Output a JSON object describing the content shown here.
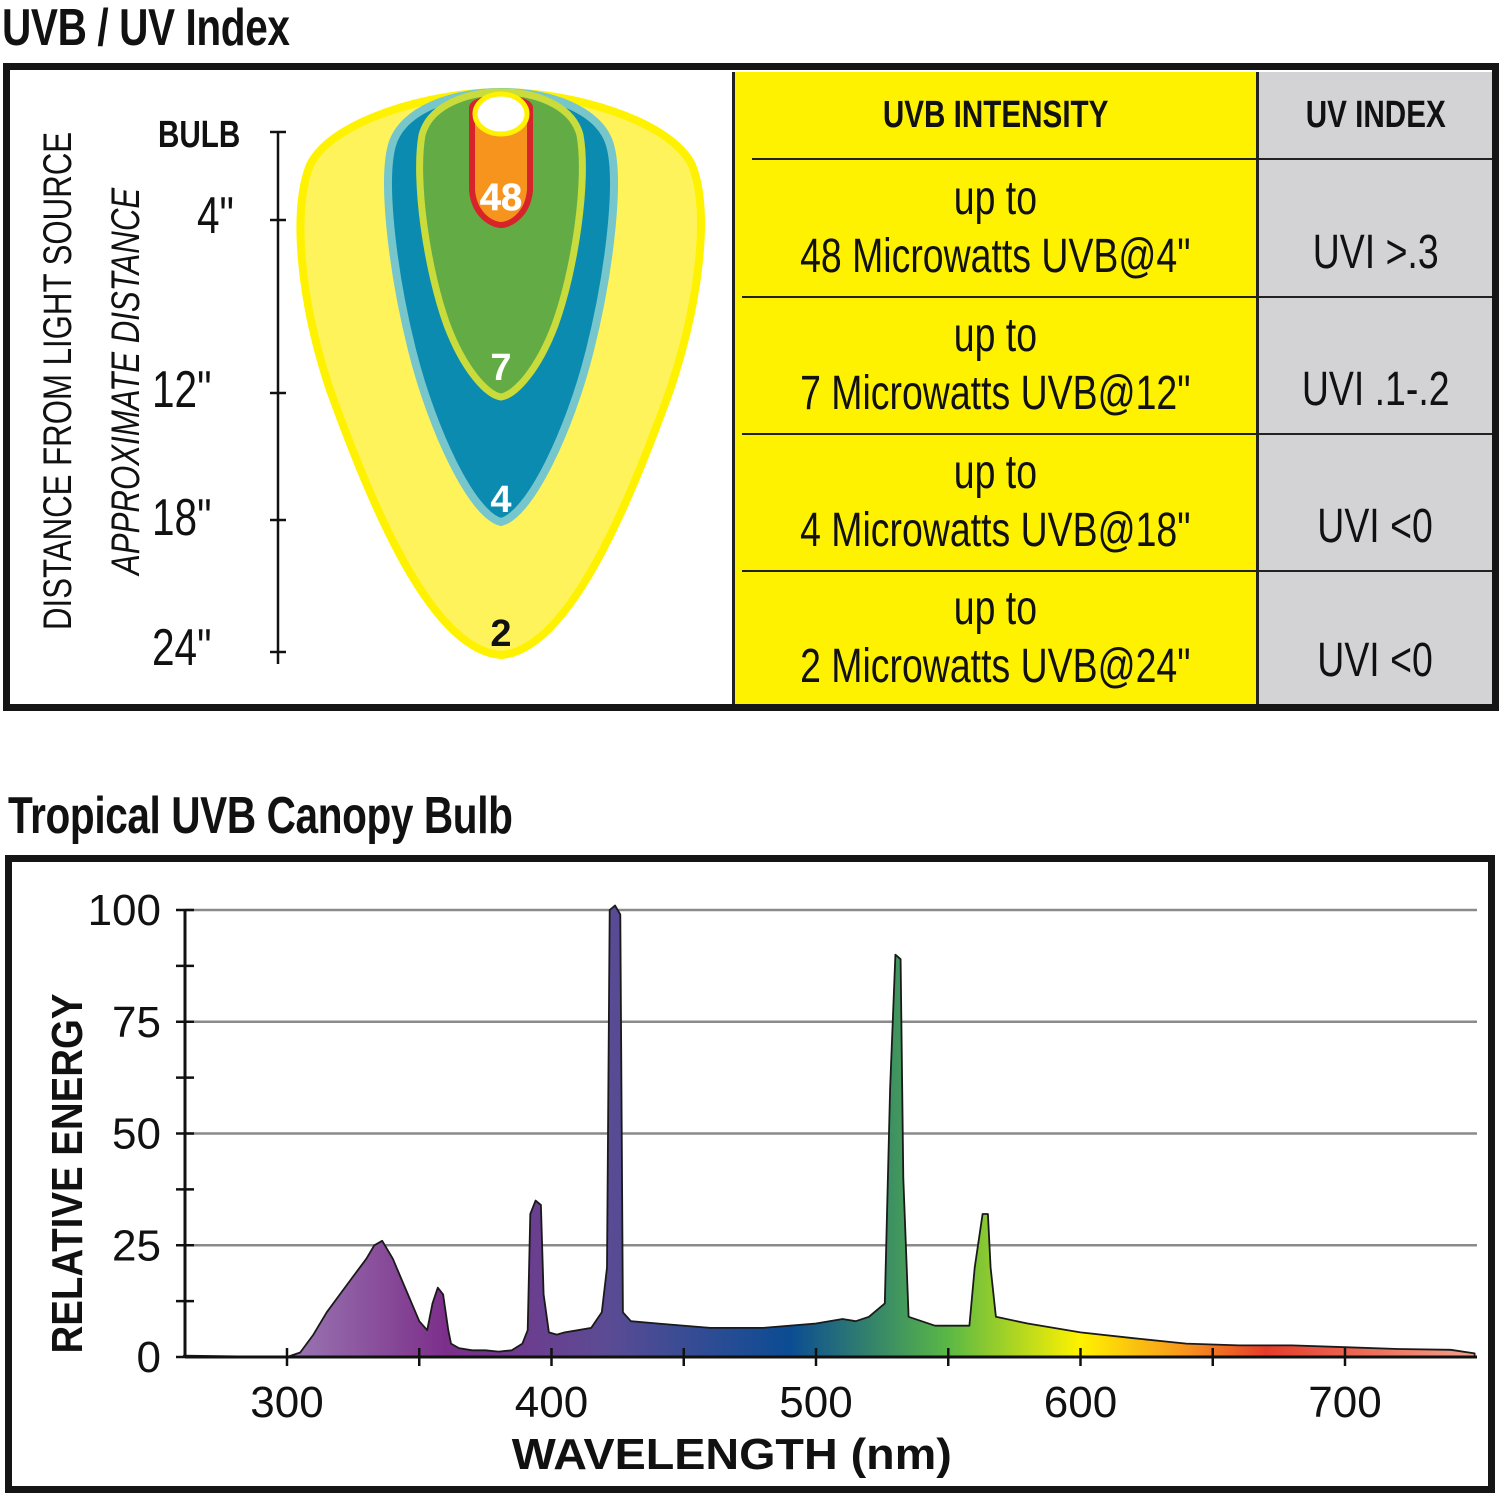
{
  "section1": {
    "title": "UVB / UV Index",
    "diagram": {
      "axis_label_line1": "DISTANCE FROM LIGHT SOURCE",
      "axis_label_line2": "APPROXIMATE DISTANCE",
      "bulb_label": "BULB",
      "distance_labels": [
        "4\"",
        "12\"",
        "18\"",
        "24\""
      ],
      "zone_values": [
        "48",
        "7",
        "4",
        "2"
      ],
      "colors": {
        "outer_zone": "#fff35c",
        "outer_edge": "#fff200",
        "blue_zone": "#0c8bb0",
        "blue_edge": "#76c6cc",
        "green_zone": "#63ab44",
        "green_edge": "#c9dc3c",
        "orange_zone": "#f7941d",
        "red_edge": "#d7232a"
      }
    },
    "table": {
      "header_intensity": "UVB INTENSITY",
      "header_index": "UV INDEX",
      "rows": [
        {
          "line1": "up to",
          "line2": "48 Microwatts UVB@4\"",
          "uvi": "UVI >.3"
        },
        {
          "line1": "up to",
          "line2": "7 Microwatts UVB@12\"",
          "uvi": "UVI .1-.2"
        },
        {
          "line1": "up to",
          "line2": "4 Microwatts UVB@18\"",
          "uvi": "UVI <0"
        },
        {
          "line1": "up to",
          "line2": "2 Microwatts UVB@24\"",
          "uvi": "UVI <0"
        }
      ],
      "colors": {
        "intensity_bg": "#fff200",
        "index_bg": "#d3d3d6"
      }
    }
  },
  "section2": {
    "title": "Tropical UVB Canopy Bulb"
  },
  "chart_data": {
    "type": "area",
    "title": "Tropical UVB Canopy Bulb",
    "xlabel": "WAVELENGTH (nm)",
    "ylabel": "RELATIVE ENERGY",
    "xlim": [
      261,
      749
    ],
    "ylim": [
      0,
      100
    ],
    "x_ticks": [
      300,
      400,
      500,
      600,
      700
    ],
    "x_minor_ticks": [
      350,
      450,
      550,
      650
    ],
    "y_ticks": [
      0,
      25,
      50,
      75,
      100
    ],
    "y_minor_ticks": [
      12.5,
      37.5,
      62.5,
      87.5
    ],
    "grid": true,
    "series": [
      {
        "name": "spectrum",
        "x": [
          261,
          300,
          305,
          310,
          315,
          320,
          325,
          330,
          333,
          336,
          340,
          345,
          350,
          353,
          355,
          357,
          359,
          361,
          362,
          365,
          370,
          375,
          380,
          385,
          389,
          391,
          392,
          394,
          396,
          397,
          399,
          402,
          405,
          410,
          415,
          419,
          421,
          422,
          424,
          426,
          427,
          430,
          440,
          460,
          480,
          500,
          510,
          515,
          520,
          526,
          528,
          530,
          532,
          533,
          535,
          545,
          558,
          560,
          563,
          565,
          566,
          568,
          580,
          600,
          620,
          640,
          660,
          680,
          700,
          720,
          740,
          749
        ],
        "y": [
          0.3,
          0,
          1,
          5,
          10,
          14,
          18,
          22,
          25,
          26,
          22,
          15,
          8,
          6,
          12,
          15.5,
          14,
          6,
          3,
          2,
          1.5,
          1.5,
          1.2,
          1.5,
          3,
          6,
          32,
          35,
          34,
          14,
          5.5,
          5,
          5.5,
          6,
          6.5,
          10,
          20,
          100,
          101,
          99,
          10,
          8,
          7.5,
          6.5,
          6.5,
          7.5,
          8.5,
          8,
          9,
          12,
          60,
          90,
          89,
          40,
          9,
          7,
          7,
          20,
          32,
          32,
          20,
          9,
          7.5,
          5.5,
          4.2,
          3,
          2.6,
          2.6,
          2.2,
          1.8,
          1.6,
          0.8
        ]
      }
    ],
    "gradient_stops": [
      {
        "nm": 300,
        "color": "#9a78b2"
      },
      {
        "nm": 360,
        "color": "#7c2f8a"
      },
      {
        "nm": 420,
        "color": "#5c4b94"
      },
      {
        "nm": 490,
        "color": "#0b4c93"
      },
      {
        "nm": 550,
        "color": "#5ab845"
      },
      {
        "nm": 600,
        "color": "#fff200"
      },
      {
        "nm": 640,
        "color": "#f7941d"
      },
      {
        "nm": 670,
        "color": "#e53c2a"
      },
      {
        "nm": 749,
        "color": "#f4a08a"
      }
    ]
  }
}
